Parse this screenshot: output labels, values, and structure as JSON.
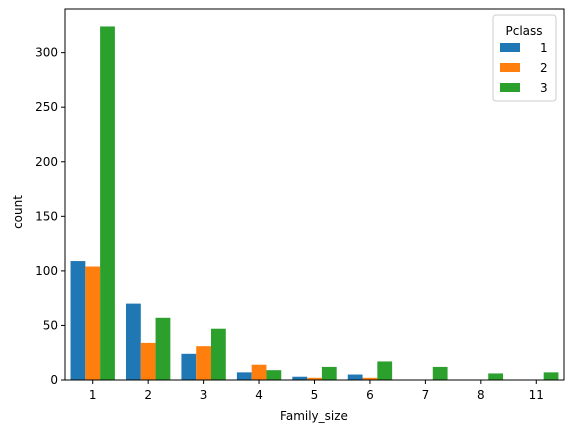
{
  "chart_data": {
    "type": "bar",
    "xlabel": "Family_size",
    "ylabel": "count",
    "categories": [
      "1",
      "2",
      "3",
      "4",
      "5",
      "6",
      "7",
      "8",
      "11"
    ],
    "series": [
      {
        "name": "1",
        "color": "#1f77b4",
        "values": [
          109,
          70,
          24,
          7,
          3,
          5,
          0,
          0,
          0
        ]
      },
      {
        "name": "2",
        "color": "#ff7f0e",
        "values": [
          104,
          34,
          31,
          14,
          2,
          2,
          0,
          0,
          0
        ]
      },
      {
        "name": "3",
        "color": "#2ca02c",
        "values": [
          324,
          57,
          47,
          9,
          12,
          17,
          12,
          6,
          7
        ]
      }
    ],
    "ylim": [
      0,
      340
    ],
    "yticks": [
      0,
      50,
      100,
      150,
      200,
      250,
      300
    ],
    "legend": {
      "title": "Pclass",
      "position": "top-right"
    },
    "grid": false
  }
}
